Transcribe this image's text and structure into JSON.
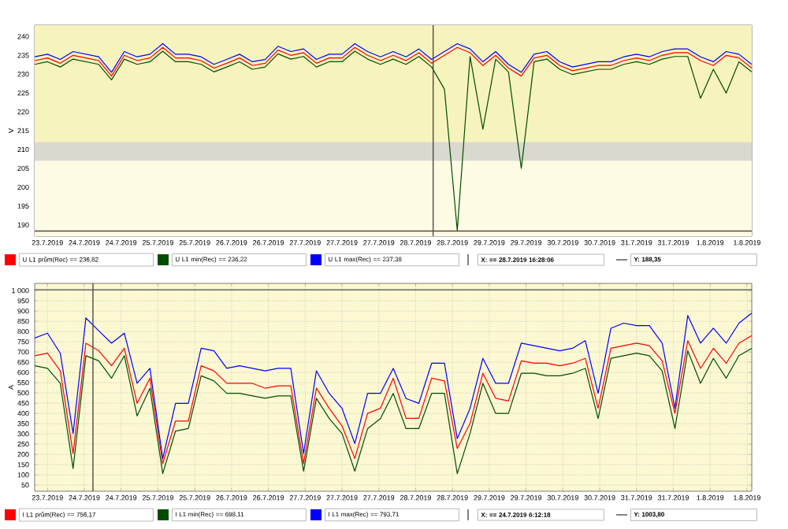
{
  "chart_data": [
    {
      "type": "line",
      "ylabel": "V",
      "grid": true,
      "legend": "bottom",
      "x": [
        "2019-07-23T12:00",
        "2019-07-23T16:00",
        "2019-07-23T20:00",
        "2019-07-24T00:00",
        "2019-07-24T04:00",
        "2019-07-24T08:00",
        "2019-07-24T12:00",
        "2019-07-24T16:00",
        "2019-07-24T20:00",
        "2019-07-25T00:00",
        "2019-07-25T04:00",
        "2019-07-25T08:00",
        "2019-07-25T12:00",
        "2019-07-25T16:00",
        "2019-07-25T20:00",
        "2019-07-26T00:00",
        "2019-07-26T04:00",
        "2019-07-26T08:00",
        "2019-07-26T12:00",
        "2019-07-26T16:00",
        "2019-07-26T20:00",
        "2019-07-27T00:00",
        "2019-07-27T04:00",
        "2019-07-27T08:00",
        "2019-07-27T12:00",
        "2019-07-27T16:00",
        "2019-07-27T20:00",
        "2019-07-28T00:00",
        "2019-07-28T04:00",
        "2019-07-28T08:00",
        "2019-07-28T12:00",
        "2019-07-28T16:00",
        "2019-07-28T20:00",
        "2019-07-29T00:00",
        "2019-07-29T04:00",
        "2019-07-29T08:00",
        "2019-07-29T12:00",
        "2019-07-29T16:00",
        "2019-07-29T20:00",
        "2019-07-30T00:00",
        "2019-07-30T04:00",
        "2019-07-30T08:00",
        "2019-07-30T12:00",
        "2019-07-30T16:00",
        "2019-07-30T20:00",
        "2019-07-31T00:00",
        "2019-07-31T04:00",
        "2019-07-31T08:00",
        "2019-07-31T12:00",
        "2019-07-31T16:00",
        "2019-07-31T20:00",
        "2019-08-01T00:00",
        "2019-08-01T04:00",
        "2019-08-01T08:00",
        "2019-08-01T12:00",
        "2019-08-01T16:00",
        "2019-08-01T20:00"
      ],
      "series": [
        {
          "name": "U L1 prům(Rec) == 236,82",
          "color": "#ff0000",
          "values": [
            233.6,
            234.3,
            232.9,
            235.0,
            234.3,
            233.6,
            229.5,
            235.0,
            233.6,
            234.3,
            237.1,
            234.3,
            234.3,
            233.6,
            231.6,
            232.9,
            234.3,
            232.3,
            232.9,
            236.4,
            235.0,
            235.7,
            232.9,
            234.3,
            234.3,
            237.1,
            235.0,
            233.6,
            235.0,
            233.6,
            235.7,
            232.9,
            235.0,
            237.1,
            235.7,
            232.3,
            235.0,
            231.6,
            229.5,
            234.3,
            235.0,
            232.3,
            230.9,
            231.6,
            232.3,
            232.3,
            233.6,
            234.3,
            233.6,
            235.0,
            235.7,
            235.7,
            233.6,
            232.3,
            235.0,
            234.3,
            231.6
          ]
        },
        {
          "name": "U L1 min(Rec) == 236,22",
          "color": "#004d00",
          "values": [
            232.6,
            233.3,
            231.9,
            234.0,
            233.3,
            232.6,
            228.5,
            234.0,
            232.6,
            233.3,
            236.1,
            233.3,
            233.3,
            232.6,
            230.6,
            231.9,
            233.3,
            231.3,
            231.9,
            235.4,
            234.0,
            234.7,
            231.9,
            233.3,
            233.3,
            236.1,
            234.0,
            232.6,
            234.0,
            232.6,
            234.7,
            231.9,
            226.0,
            188.5,
            234.7,
            215.4,
            234.0,
            230.6,
            205.0,
            233.3,
            234.0,
            231.3,
            229.9,
            230.6,
            231.3,
            231.3,
            232.6,
            233.3,
            232.6,
            234.0,
            234.7,
            234.7,
            223.6,
            231.3,
            225.0,
            233.3,
            230.6
          ]
        },
        {
          "name": "U L1 max(Rec) == 237,38",
          "color": "#0000ff",
          "values": [
            234.6,
            235.3,
            233.9,
            236.0,
            235.3,
            234.6,
            230.5,
            236.0,
            234.6,
            235.3,
            238.1,
            235.3,
            235.3,
            234.6,
            232.6,
            233.9,
            235.3,
            233.3,
            233.9,
            237.4,
            236.0,
            236.7,
            233.9,
            235.3,
            235.3,
            238.1,
            236.0,
            234.6,
            236.0,
            234.6,
            236.7,
            233.9,
            236.0,
            238.1,
            236.7,
            233.3,
            236.0,
            232.6,
            230.5,
            235.3,
            236.0,
            233.3,
            231.9,
            232.6,
            233.3,
            233.3,
            234.6,
            235.3,
            234.6,
            236.0,
            236.7,
            236.7,
            234.6,
            233.3,
            236.0,
            235.3,
            232.6
          ]
        }
      ],
      "xlim": [
        "2019-07-23T12:00",
        "2019-08-01T20:00"
      ],
      "ylim": [
        187,
        243
      ],
      "xticks": [
        {
          "value": "2019-07-23T16:00",
          "label": "23.7.2019"
        },
        {
          "value": "2019-07-24T03:30",
          "label": "24.7.2019"
        },
        {
          "value": "2019-07-24T15:00",
          "label": "24.7.2019"
        },
        {
          "value": "2019-07-25T02:30",
          "label": "25.7.2019"
        },
        {
          "value": "2019-07-25T14:00",
          "label": "25.7.2019"
        },
        {
          "value": "2019-07-26T01:30",
          "label": "26.7.2019"
        },
        {
          "value": "2019-07-26T13:00",
          "label": "26.7.2019"
        },
        {
          "value": "2019-07-27T00:30",
          "label": "27.7.2019"
        },
        {
          "value": "2019-07-27T12:00",
          "label": "27.7.2019"
        },
        {
          "value": "2019-07-27T23:30",
          "label": "27.7.2019"
        },
        {
          "value": "2019-07-28T11:00",
          "label": "28.7.2019"
        },
        {
          "value": "2019-07-28T22:30",
          "label": "28.7.2019"
        },
        {
          "value": "2019-07-29T10:00",
          "label": "29.7.2019"
        },
        {
          "value": "2019-07-29T21:30",
          "label": "29.7.2019"
        },
        {
          "value": "2019-07-30T09:00",
          "label": "30.7.2019"
        },
        {
          "value": "2019-07-30T20:30",
          "label": "30.7.2019"
        },
        {
          "value": "2019-07-31T08:00",
          "label": "31.7.2019"
        },
        {
          "value": "2019-07-31T19:30",
          "label": "31.7.2019"
        },
        {
          "value": "2019-08-01T07:00",
          "label": "1.8.2019"
        },
        {
          "value": "2019-08-01T18:30",
          "label": "1.8.2019"
        }
      ],
      "yticks": [
        190,
        195,
        200,
        205,
        210,
        215,
        220,
        225,
        230,
        235,
        240
      ],
      "bands": [
        {
          "axis": "y",
          "from": 187,
          "to": 207,
          "color": "#fdfbe4"
        },
        {
          "axis": "y",
          "from": 207,
          "to": 212,
          "color": "#d9d9cf"
        },
        {
          "axis": "y",
          "from": 212,
          "to": 243,
          "color": "#f7f3bc"
        }
      ],
      "ref_lines": [
        {
          "axis": "x",
          "value": "2019-07-28T16:28:06",
          "label": "X: == 28.7.2019 16:28:06"
        },
        {
          "axis": "y",
          "value": 188.35,
          "label": "Y: 188,35"
        }
      ]
    },
    {
      "type": "line",
      "ylabel": "A",
      "grid": true,
      "legend": "bottom",
      "x": [
        "2019-07-23T12:00",
        "2019-07-23T16:00",
        "2019-07-23T20:00",
        "2019-07-24T00:00",
        "2019-07-24T04:00",
        "2019-07-24T08:00",
        "2019-07-24T12:00",
        "2019-07-24T16:00",
        "2019-07-24T20:00",
        "2019-07-25T00:00",
        "2019-07-25T04:00",
        "2019-07-25T08:00",
        "2019-07-25T12:00",
        "2019-07-25T16:00",
        "2019-07-25T20:00",
        "2019-07-26T00:00",
        "2019-07-26T04:00",
        "2019-07-26T08:00",
        "2019-07-26T12:00",
        "2019-07-26T16:00",
        "2019-07-26T20:00",
        "2019-07-27T00:00",
        "2019-07-27T04:00",
        "2019-07-27T08:00",
        "2019-07-27T12:00",
        "2019-07-27T16:00",
        "2019-07-27T20:00",
        "2019-07-28T00:00",
        "2019-07-28T04:00",
        "2019-07-28T08:00",
        "2019-07-28T12:00",
        "2019-07-28T16:00",
        "2019-07-28T20:00",
        "2019-07-29T00:00",
        "2019-07-29T04:00",
        "2019-07-29T08:00",
        "2019-07-29T12:00",
        "2019-07-29T16:00",
        "2019-07-29T20:00",
        "2019-07-30T00:00",
        "2019-07-30T04:00",
        "2019-07-30T08:00",
        "2019-07-30T12:00",
        "2019-07-30T16:00",
        "2019-07-30T20:00",
        "2019-07-31T00:00",
        "2019-07-31T04:00",
        "2019-07-31T08:00",
        "2019-07-31T12:00",
        "2019-07-31T16:00",
        "2019-07-31T20:00",
        "2019-08-01T00:00",
        "2019-08-01T04:00",
        "2019-08-01T08:00",
        "2019-08-01T12:00",
        "2019-08-01T16:00",
        "2019-08-01T20:00"
      ],
      "series": [
        {
          "name": "I L1 prům(Rec) == 756,17",
          "color": "#ff0000",
          "values": [
            682,
            694,
            608,
            204,
            743,
            706,
            633,
            718,
            449,
            572,
            155,
            363,
            363,
            633,
            608,
            547,
            547,
            547,
            523,
            535,
            535,
            155,
            523,
            425,
            339,
            180,
            400,
            425,
            572,
            376,
            376,
            572,
            559,
            229,
            351,
            596,
            474,
            461,
            657,
            645,
            645,
            633,
            645,
            669,
            425,
            718,
            731,
            743,
            731,
            657,
            400,
            755,
            620,
            718,
            645,
            743,
            780
          ]
        },
        {
          "name": "I L1 min(Rec) == 698,11",
          "color": "#004d00",
          "values": [
            633,
            620,
            547,
            131,
            682,
            657,
            572,
            682,
            388,
            523,
            106,
            314,
            326,
            584,
            559,
            498,
            498,
            486,
            474,
            486,
            486,
            118,
            474,
            375,
            302,
            118,
            326,
            375,
            498,
            326,
            326,
            498,
            498,
            106,
            302,
            547,
            400,
            400,
            596,
            596,
            584,
            584,
            596,
            620,
            375,
            669,
            682,
            694,
            682,
            608,
            326,
            706,
            547,
            669,
            572,
            682,
            718
          ]
        },
        {
          "name": "I L1 max(Rec) == 793,71",
          "color": "#0000ff",
          "values": [
            768,
            792,
            694,
            302,
            866,
            804,
            743,
            792,
            547,
            620,
            180,
            449,
            449,
            718,
            706,
            620,
            633,
            620,
            608,
            620,
            620,
            204,
            608,
            498,
            425,
            253,
            498,
            498,
            620,
            473,
            449,
            645,
            645,
            277,
            425,
            669,
            547,
            547,
            743,
            731,
            718,
            706,
            718,
            755,
            498,
            816,
            841,
            829,
            829,
            743,
            425,
            878,
            743,
            816,
            743,
            841,
            890
          ]
        }
      ],
      "xlim": [
        "2019-07-23T12:00",
        "2019-08-01T20:00"
      ],
      "ylim": [
        20,
        1035
      ],
      "xticks": [
        {
          "value": "2019-07-23T16:00",
          "label": "23.7.2019"
        },
        {
          "value": "2019-07-24T03:30",
          "label": "24.7.2019"
        },
        {
          "value": "2019-07-24T15:00",
          "label": "24.7.2019"
        },
        {
          "value": "2019-07-25T02:30",
          "label": "25.7.2019"
        },
        {
          "value": "2019-07-25T14:00",
          "label": "25.7.2019"
        },
        {
          "value": "2019-07-26T01:30",
          "label": "26.7.2019"
        },
        {
          "value": "2019-07-26T13:00",
          "label": "26.7.2019"
        },
        {
          "value": "2019-07-27T00:30",
          "label": "27.7.2019"
        },
        {
          "value": "2019-07-27T12:00",
          "label": "27.7.2019"
        },
        {
          "value": "2019-07-27T23:30",
          "label": "27.7.2019"
        },
        {
          "value": "2019-07-28T11:00",
          "label": "28.7.2019"
        },
        {
          "value": "2019-07-28T22:30",
          "label": "28.7.2019"
        },
        {
          "value": "2019-07-29T10:00",
          "label": "29.7.2019"
        },
        {
          "value": "2019-07-29T21:30",
          "label": "29.7.2019"
        },
        {
          "value": "2019-07-30T09:00",
          "label": "30.7.2019"
        },
        {
          "value": "2019-07-30T20:30",
          "label": "30.7.2019"
        },
        {
          "value": "2019-07-31T08:00",
          "label": "31.7.2019"
        },
        {
          "value": "2019-07-31T19:30",
          "label": "31.7.2019"
        },
        {
          "value": "2019-08-01T07:00",
          "label": "1.8.2019"
        },
        {
          "value": "2019-08-01T18:30",
          "label": "1.8.2019"
        }
      ],
      "yticks": [
        50,
        100,
        150,
        200,
        250,
        300,
        350,
        400,
        450,
        500,
        550,
        600,
        650,
        700,
        750,
        800,
        850,
        900,
        950,
        {
          "value": 1000,
          "label": "1 000"
        }
      ],
      "ref_lines": [
        {
          "axis": "x",
          "value": "2019-07-24T06:12:18",
          "label": "X: == 24.7.2019 6:12:18"
        },
        {
          "axis": "y",
          "value": 1003.8,
          "label": "Y: 1003,80"
        }
      ]
    }
  ]
}
